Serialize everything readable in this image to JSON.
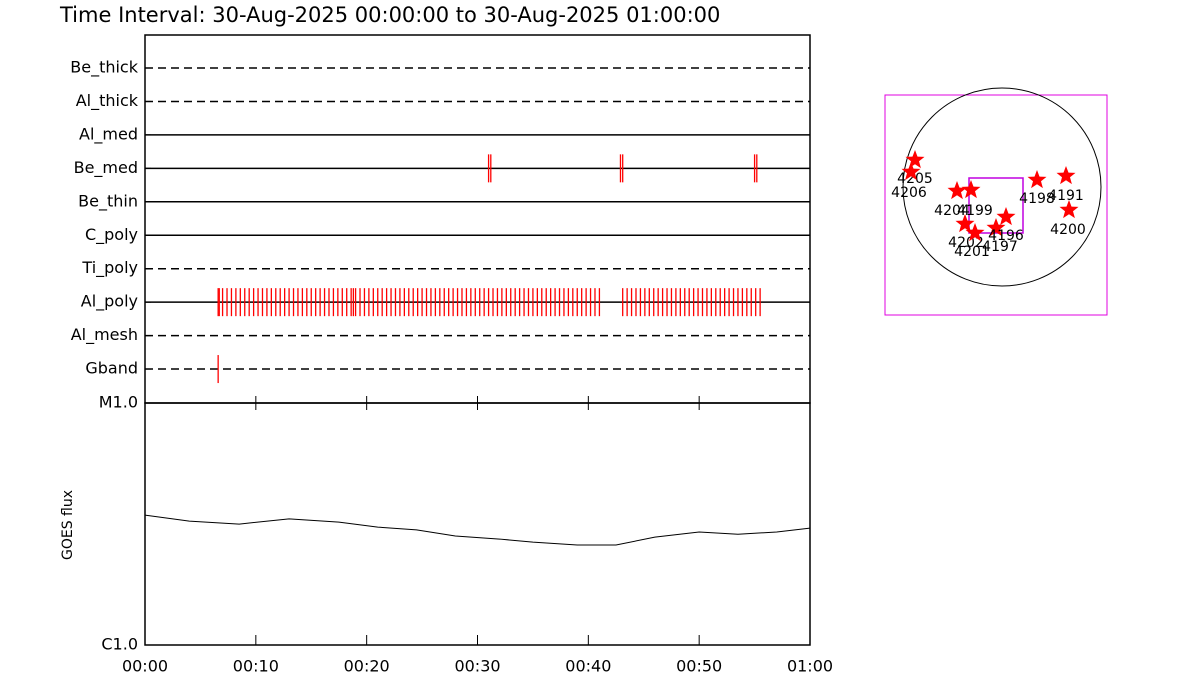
{
  "chart_data": [
    {
      "type": "timeline",
      "title": "Time Interval: 30-Aug-2025 00:00:00 to 30-Aug-2025 01:00:00",
      "xlim": [
        0,
        60
      ],
      "color": "#ff0000",
      "rows": [
        {
          "name": "Be_thick",
          "dashed": true,
          "times": []
        },
        {
          "name": "Al_thick",
          "dashed": true,
          "times": []
        },
        {
          "name": "Al_med",
          "dashed": false,
          "times": []
        },
        {
          "name": "Be_med",
          "dashed": false,
          "times": [
            31.0,
            31.2,
            42.9,
            43.1,
            55.0,
            55.2
          ]
        },
        {
          "name": "Be_thin",
          "dashed": false,
          "times": []
        },
        {
          "name": "C_poly",
          "dashed": false,
          "times": []
        },
        {
          "name": "Ti_poly",
          "dashed": true,
          "times": []
        },
        {
          "name": "Al_poly",
          "dashed": false,
          "times": [
            6.6,
            6.7,
            7.0,
            7.4,
            7.8,
            8.2,
            8.6,
            9.0,
            9.4,
            9.8,
            10.2,
            10.6,
            11.0,
            11.4,
            11.8,
            12.2,
            12.6,
            13.0,
            13.4,
            13.8,
            14.2,
            14.6,
            15.0,
            15.4,
            15.8,
            16.2,
            16.6,
            17.0,
            17.4,
            17.8,
            18.2,
            18.6,
            18.8,
            19.0,
            19.4,
            19.8,
            20.2,
            20.6,
            21.0,
            21.4,
            21.8,
            22.2,
            22.6,
            23.0,
            23.4,
            23.8,
            24.2,
            24.6,
            25.0,
            25.4,
            25.8,
            26.2,
            26.6,
            27.0,
            27.4,
            27.8,
            28.2,
            28.6,
            29.0,
            29.4,
            29.8,
            30.2,
            30.6,
            31.0,
            31.4,
            31.8,
            32.2,
            32.6,
            33.0,
            33.4,
            33.8,
            34.2,
            34.6,
            35.0,
            35.4,
            35.8,
            36.2,
            36.6,
            37.0,
            37.4,
            37.8,
            38.2,
            38.6,
            39.0,
            39.4,
            39.8,
            40.2,
            40.6,
            41.0,
            43.1,
            43.5,
            43.9,
            44.3,
            44.7,
            45.1,
            45.5,
            45.9,
            46.3,
            46.7,
            47.1,
            47.5,
            47.9,
            48.3,
            48.7,
            49.1,
            49.5,
            49.9,
            50.3,
            50.7,
            51.1,
            51.5,
            51.9,
            52.3,
            52.7,
            53.1,
            53.5,
            53.9,
            54.3,
            54.7,
            55.1,
            55.5
          ]
        },
        {
          "name": "Al_mesh",
          "dashed": true,
          "times": []
        },
        {
          "name": "Gband",
          "dashed": true,
          "times": [
            6.6
          ]
        }
      ]
    },
    {
      "type": "line",
      "ylabel": "GOES flux",
      "log_y": true,
      "xlim": [
        0,
        60
      ],
      "xticks": [
        {
          "value": 0,
          "label": "00:00"
        },
        {
          "value": 10,
          "label": "00:10"
        },
        {
          "value": 20,
          "label": "00:20"
        },
        {
          "value": 30,
          "label": "00:30"
        },
        {
          "value": 40,
          "label": "00:40"
        },
        {
          "value": 50,
          "label": "00:50"
        },
        {
          "value": 60,
          "label": "01:00"
        }
      ],
      "ylim": [
        1e-06,
        1e-05
      ],
      "yticks": [
        {
          "value": 1e-06,
          "label": "C1.0"
        },
        {
          "value": 1e-05,
          "label": "M1.0"
        }
      ],
      "x": [
        0,
        4,
        8.5,
        13,
        17.5,
        21,
        24.5,
        28,
        32,
        35,
        39,
        42.5,
        46,
        50,
        53.5,
        57,
        60
      ],
      "series": [
        {
          "color": "#000000",
          "values": [
            3.44e-06,
            3.25e-06,
            3.16e-06,
            3.32e-06,
            3.22e-06,
            3.07e-06,
            2.99e-06,
            2.82e-06,
            2.74e-06,
            2.66e-06,
            2.59e-06,
            2.59e-06,
            2.79e-06,
            2.93e-06,
            2.87e-06,
            2.93e-06,
            3.04e-06
          ]
        }
      ]
    }
  ],
  "map": {
    "regions": [
      "4205",
      "4206",
      "4204",
      "4199",
      "4198",
      "4191",
      "4200",
      "4202",
      "4201",
      "4197",
      "4196"
    ]
  }
}
